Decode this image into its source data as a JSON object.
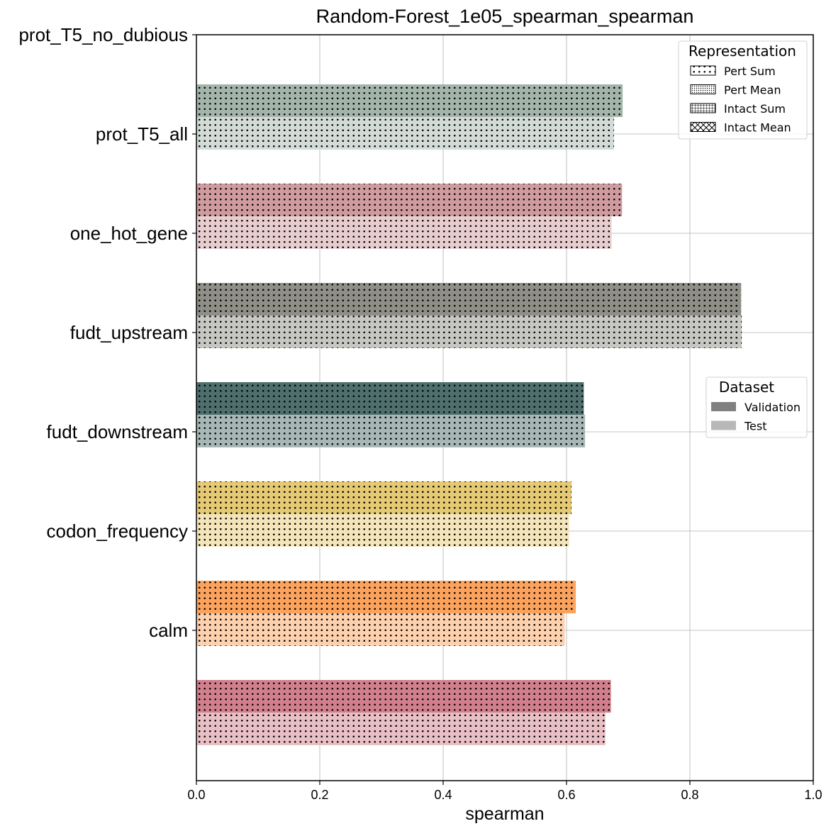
{
  "chart_data": {
    "type": "bar",
    "orientation": "horizontal",
    "title": "Random-Forest_1e05_spearman_spearman",
    "xlabel": "spearman",
    "ylabel": "",
    "xlim": [
      0.0,
      1.0
    ],
    "xticks": [
      "0.0",
      "0.2",
      "0.4",
      "0.6",
      "0.8",
      "1.0"
    ],
    "categories": [
      "prot_T5_no_dubious",
      "prot_T5_all",
      "one_hot_gene",
      "fudt_upstream",
      "fudt_downstream",
      "codon_frequency",
      "calm"
    ],
    "grid": true,
    "bar_groups": [
      {
        "validation": 0.691,
        "test": 0.677,
        "color_dark": "#a3b4aa",
        "color_light": "#d3dbd6"
      },
      {
        "validation": 0.69,
        "test": 0.673,
        "color_dark": "#cf9b9f",
        "color_light": "#e8cdcf"
      },
      {
        "validation": 0.883,
        "test": 0.884,
        "color_dark": "#8f8f87",
        "color_light": "#c6c6c2"
      },
      {
        "validation": 0.628,
        "test": 0.63,
        "color_dark": "#4e6f6d",
        "color_light": "#a6b7b6"
      },
      {
        "validation": 0.608,
        "test": 0.604,
        "color_dark": "#e6c973",
        "color_light": "#f3e4b9"
      },
      {
        "validation": 0.615,
        "test": 0.597,
        "color_dark": "#fba25d",
        "color_light": "#fdd0ae"
      },
      {
        "validation": 0.672,
        "test": 0.663,
        "color_dark": "#d17f8c",
        "color_light": "#e8bfc5"
      }
    ],
    "legend_representation": {
      "title": "Representation",
      "position": "top-right",
      "items": [
        {
          "label": "Pert Sum",
          "hatch": "dots"
        },
        {
          "label": "Pert Mean",
          "hatch": "dense-dots"
        },
        {
          "label": "Intact Sum",
          "hatch": "grid"
        },
        {
          "label": "Intact Mean",
          "hatch": "crosshatch"
        }
      ]
    },
    "legend_dataset": {
      "title": "Dataset",
      "position": "center-right",
      "items": [
        {
          "label": "Validation",
          "color": "#808080"
        },
        {
          "label": "Test",
          "color": "#b8b8b8"
        }
      ]
    }
  }
}
